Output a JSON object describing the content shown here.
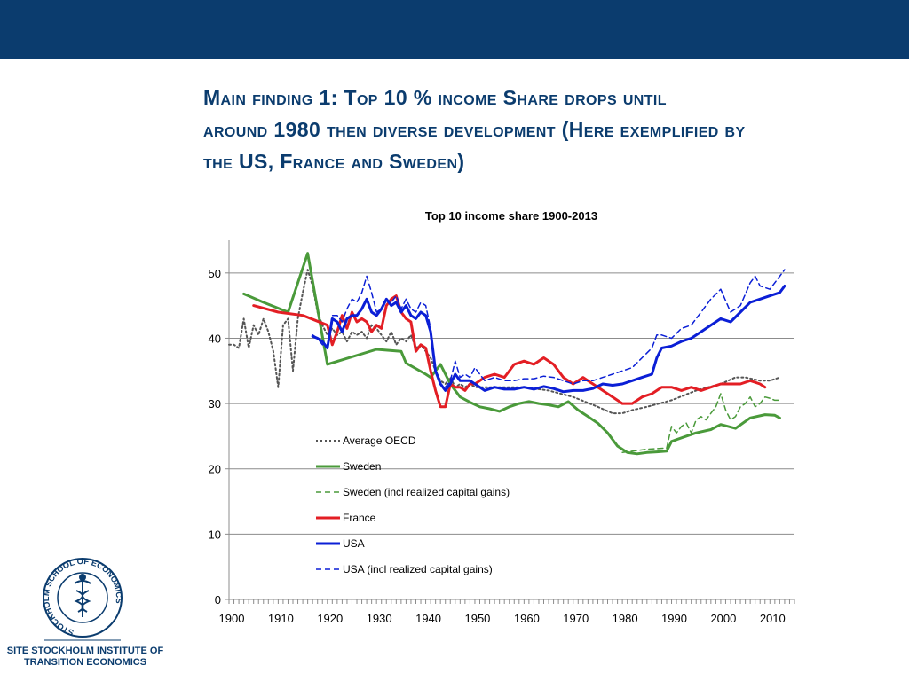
{
  "slide": {
    "title_lines": [
      "Main finding 1: Top 10 % income Share drops until",
      "around 1980 then diverse development (Here exemplified by",
      "the US, France and Sweden)"
    ]
  },
  "logo": {
    "ring_text": "STOCKHOLM SCHOOL OF ECONOMICS",
    "institute_lines": [
      "SITE STOCKHOLM INSTITUTE OF",
      "TRANSITION ECONOMICS"
    ]
  },
  "colors": {
    "header_band": "#0b3c6e",
    "title": "#0b3c6e",
    "average_oecd": "#555555",
    "sweden": "#4a9a3a",
    "france": "#e31e24",
    "usa": "#0b1fd6"
  },
  "chart_data": {
    "type": "line",
    "title": "Top 10 income share 1900-2013",
    "xlim": [
      1900,
      2015
    ],
    "ylim": [
      0,
      55
    ],
    "x_ticks": [
      {
        "value": 1900,
        "label": "1900"
      },
      {
        "value": 1910,
        "label": "1910"
      },
      {
        "value": 1920,
        "label": "1920"
      },
      {
        "value": 1930,
        "label": "1930"
      },
      {
        "value": 1940,
        "label": "1940"
      },
      {
        "value": 1950,
        "label": "1950"
      },
      {
        "value": 1960,
        "label": "1960"
      },
      {
        "value": 1970,
        "label": "1970"
      },
      {
        "value": 1980,
        "label": "1980"
      },
      {
        "value": 1990,
        "label": "1990"
      },
      {
        "value": 2000,
        "label": "2000"
      },
      {
        "value": 2010,
        "label": "2010"
      }
    ],
    "y_ticks": [
      {
        "value": 0,
        "label": "0"
      },
      {
        "value": 10,
        "label": "10"
      },
      {
        "value": 20,
        "label": "20"
      },
      {
        "value": 30,
        "label": "30"
      },
      {
        "value": 40,
        "label": "40"
      },
      {
        "value": 50,
        "label": "50"
      }
    ],
    "gridlines": "horizontal",
    "legend_position": "lower-left",
    "series": [
      {
        "name": "Average OECD",
        "style": "dotted",
        "color": "#555555",
        "x": [
          1900,
          1901,
          1902,
          1903,
          1904,
          1905,
          1906,
          1907,
          1908,
          1909,
          1910,
          1911,
          1912,
          1913,
          1914,
          1915,
          1916,
          1917,
          1918,
          1919,
          1920,
          1921,
          1922,
          1923,
          1924,
          1925,
          1926,
          1927,
          1928,
          1929,
          1930,
          1931,
          1932,
          1933,
          1934,
          1935,
          1936,
          1937,
          1938,
          1939,
          1940,
          1941,
          1942,
          1943,
          1944,
          1945,
          1946,
          1947,
          1948,
          1949,
          1950,
          1955,
          1960,
          1965,
          1970,
          1975,
          1978,
          1980,
          1982,
          1985,
          1990,
          1995,
          2000,
          2003,
          2005,
          2008,
          2010,
          2012
        ],
        "y": [
          39,
          39,
          38.5,
          43,
          38.5,
          42,
          40.5,
          43,
          41,
          38,
          32.5,
          42,
          43,
          35,
          43,
          47,
          50.5,
          48,
          44,
          42,
          40.5,
          41.5,
          40.5,
          41,
          39.5,
          41,
          40.5,
          41,
          40,
          42,
          41.5,
          40.5,
          39.5,
          41,
          39,
          40,
          39.5,
          40.5,
          38.5,
          39,
          38,
          37,
          35,
          33.5,
          33,
          34,
          32.5,
          33,
          32.5,
          33,
          32.5,
          32.5,
          32.5,
          32,
          31,
          29.5,
          28.5,
          28.5,
          29,
          29.5,
          30.5,
          32,
          33,
          34,
          34,
          33.5,
          33.5,
          34
        ]
      },
      {
        "name": "Sweden",
        "style": "solid",
        "color": "#4a9a3a",
        "x": [
          1903,
          1907,
          1912,
          1916,
          1920,
          1930,
          1935,
          1936,
          1940,
          1941,
          1943,
          1945,
          1947,
          1949,
          1951,
          1953,
          1955,
          1957,
          1959,
          1961,
          1963,
          1965,
          1967,
          1969,
          1971,
          1973,
          1975,
          1977,
          1979,
          1981,
          1983,
          1985,
          1987,
          1989,
          1990,
          1993,
          1995,
          1998,
          2000,
          2003,
          2006,
          2009,
          2011,
          2012
        ],
        "y": [
          46.8,
          45.5,
          44,
          53,
          36,
          38.3,
          38,
          36.2,
          34.5,
          34,
          36,
          33,
          31,
          30.2,
          29.5,
          29.2,
          28.8,
          29.5,
          30,
          30.3,
          30,
          29.8,
          29.5,
          30.3,
          29,
          28,
          27,
          25.5,
          23.5,
          22.5,
          22.3,
          22.5,
          22.6,
          22.7,
          24.2,
          25,
          25.5,
          26,
          26.8,
          26.2,
          27.8,
          28.3,
          28.2,
          27.8
        ]
      },
      {
        "name": "Sweden (incl realized capital gains)",
        "style": "dashed",
        "color": "#4a9a3a",
        "x": [
          1980,
          1985,
          1989,
          1990,
          1991,
          1992,
          1993,
          1994,
          1995,
          1996,
          1997,
          1998,
          1999,
          2000,
          2001,
          2002,
          2003,
          2004,
          2005,
          2006,
          2007,
          2008,
          2009,
          2010,
          2011,
          2012
        ],
        "y": [
          22.5,
          23,
          23.2,
          26.5,
          25.5,
          26.5,
          27,
          25.5,
          27.5,
          28,
          27.5,
          28.5,
          29.5,
          31.5,
          29,
          27.5,
          28,
          29.5,
          30,
          31,
          29.5,
          30,
          31,
          30.8,
          30.5,
          30.5
        ]
      },
      {
        "name": "France",
        "style": "solid",
        "color": "#e31e24",
        "x": [
          1905,
          1910,
          1915,
          1920,
          1921,
          1922,
          1923,
          1924,
          1925,
          1926,
          1927,
          1928,
          1929,
          1930,
          1931,
          1932,
          1933,
          1934,
          1935,
          1936,
          1937,
          1938,
          1939,
          1940,
          1941,
          1942,
          1943,
          1944,
          1945,
          1946,
          1947,
          1948,
          1949,
          1950,
          1952,
          1954,
          1956,
          1958,
          1960,
          1962,
          1964,
          1966,
          1968,
          1970,
          1972,
          1974,
          1976,
          1978,
          1980,
          1982,
          1984,
          1986,
          1988,
          1990,
          1992,
          1994,
          1996,
          1998,
          2000,
          2002,
          2004,
          2006,
          2008,
          2009
        ],
        "y": [
          45,
          44,
          43.5,
          42,
          39,
          41,
          43.5,
          41.5,
          44,
          42.5,
          43,
          42.5,
          41,
          42,
          41.5,
          45,
          46,
          46.5,
          44,
          43,
          42.5,
          38,
          39,
          38.5,
          35,
          32,
          29.5,
          29.5,
          33,
          32.5,
          32.5,
          32,
          33,
          33,
          34,
          34.5,
          34,
          36,
          36.5,
          36,
          37,
          36,
          34,
          33,
          34,
          33,
          32,
          31,
          30,
          30,
          31,
          31.5,
          32.5,
          32.5,
          32,
          32.5,
          32,
          32.5,
          33,
          33,
          33,
          33.5,
          33,
          32.5
        ]
      },
      {
        "name": "USA",
        "style": "solid",
        "color": "#0b1fd6",
        "x": [
          1917,
          1918,
          1919,
          1920,
          1921,
          1922,
          1923,
          1924,
          1925,
          1926,
          1927,
          1928,
          1929,
          1930,
          1931,
          1932,
          1933,
          1934,
          1935,
          1936,
          1937,
          1938,
          1939,
          1940,
          1941,
          1942,
          1943,
          1944,
          1945,
          1946,
          1947,
          1948,
          1949,
          1950,
          1952,
          1954,
          1956,
          1958,
          1960,
          1962,
          1964,
          1966,
          1968,
          1970,
          1972,
          1974,
          1976,
          1978,
          1980,
          1982,
          1984,
          1986,
          1987,
          1988,
          1990,
          1992,
          1994,
          1996,
          1998,
          2000,
          2002,
          2004,
          2006,
          2008,
          2010,
          2012,
          2013
        ],
        "y": [
          40.3,
          40,
          39.5,
          38.5,
          43,
          42.5,
          41,
          43,
          43.5,
          43.5,
          44.5,
          46,
          44,
          43.5,
          44.5,
          46,
          45,
          45.5,
          44,
          45,
          43.5,
          43,
          44,
          43.5,
          41,
          35,
          33,
          32,
          33,
          34.5,
          33.5,
          33.5,
          33.5,
          33,
          32,
          32.5,
          32.2,
          32.2,
          32.5,
          32.2,
          32.6,
          32.3,
          31.8,
          32,
          32,
          32.3,
          33,
          32.8,
          33,
          33.5,
          34,
          34.5,
          37,
          38.5,
          38.8,
          39.5,
          40,
          41,
          42,
          43,
          42.5,
          44,
          45.5,
          46,
          46.5,
          47,
          48
        ]
      },
      {
        "name": "USA (incl realized capital gains)",
        "style": "dashed",
        "color": "#0b1fd6",
        "x": [
          1917,
          1918,
          1919,
          1920,
          1921,
          1922,
          1923,
          1924,
          1925,
          1926,
          1927,
          1928,
          1929,
          1930,
          1931,
          1932,
          1933,
          1934,
          1935,
          1936,
          1937,
          1938,
          1939,
          1940,
          1941,
          1942,
          1943,
          1944,
          1945,
          1946,
          1947,
          1948,
          1949,
          1950,
          1952,
          1954,
          1956,
          1958,
          1960,
          1962,
          1964,
          1966,
          1968,
          1970,
          1972,
          1974,
          1976,
          1978,
          1980,
          1982,
          1984,
          1986,
          1987,
          1988,
          1990,
          1992,
          1994,
          1996,
          1998,
          2000,
          2002,
          2004,
          2006,
          2007,
          2008,
          2010,
          2012,
          2013
        ],
        "y": [
          40.5,
          40,
          39,
          38.5,
          43.5,
          43.5,
          42.5,
          44.5,
          46,
          45.5,
          47,
          49.5,
          47,
          44,
          44.5,
          46,
          45.5,
          46.5,
          44.5,
          46,
          44.5,
          44,
          45.5,
          45,
          41.5,
          35,
          33,
          32.5,
          33.5,
          36.5,
          34,
          34.5,
          34,
          35.5,
          33.5,
          34,
          33.5,
          33.5,
          33.8,
          33.8,
          34.2,
          34,
          33.5,
          33,
          33.5,
          33.5,
          34,
          34.5,
          35,
          35.5,
          37,
          38.5,
          40.5,
          40.5,
          40,
          41.5,
          42,
          44,
          46,
          47.5,
          44,
          45,
          48.5,
          49.5,
          48,
          47.5,
          49.5,
          50.5
        ]
      }
    ]
  }
}
